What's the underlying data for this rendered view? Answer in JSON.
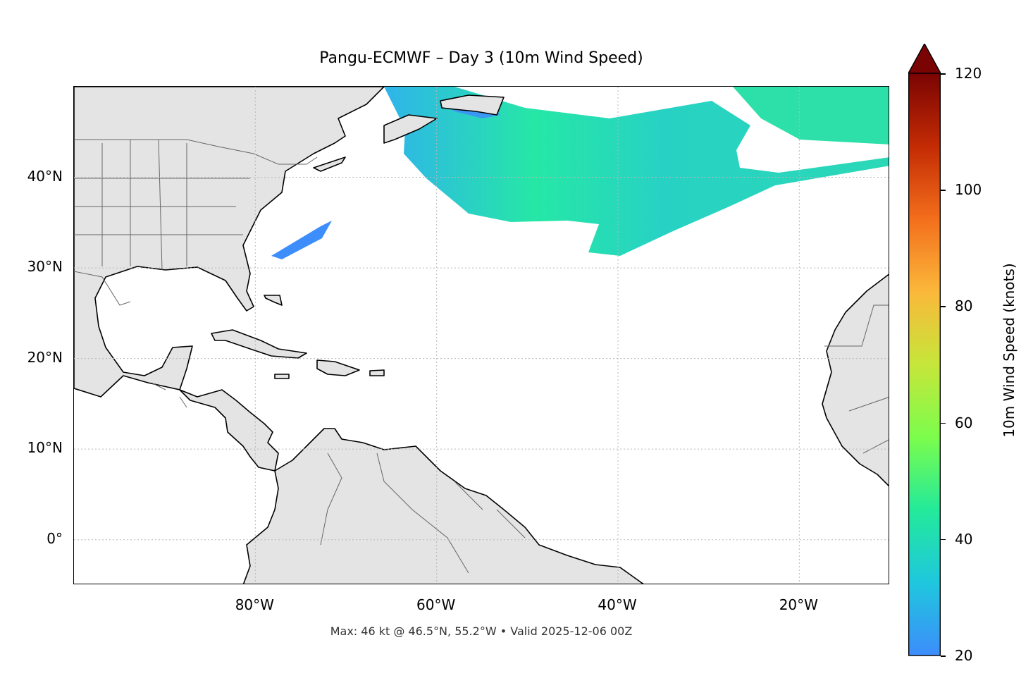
{
  "title": "Pangu-ECMWF – Day 3 (10m Wind Speed)",
  "footnote": "Max: 46 kt @ 46.5°N, 55.2°W • Valid 2025-12-06 00Z",
  "map": {
    "lon_range": [
      -100,
      -10
    ],
    "lat_range": [
      -5,
      50
    ],
    "lat_ticks": [
      {
        "value": 40,
        "label": "40°N"
      },
      {
        "value": 30,
        "label": "30°N"
      },
      {
        "value": 20,
        "label": "20°N"
      },
      {
        "value": 10,
        "label": "10°N"
      },
      {
        "value": 0,
        "label": "0°"
      }
    ],
    "lon_ticks": [
      {
        "value": -80,
        "label": "80°W"
      },
      {
        "value": -60,
        "label": "60°W"
      },
      {
        "value": -40,
        "label": "40°W"
      },
      {
        "value": -20,
        "label": "20°W"
      }
    ],
    "gridlines": true,
    "land_color": "#e4e4e4",
    "coastline_color": "#000000",
    "border_color": "#666666"
  },
  "colorbar": {
    "label": "10m Wind Speed (knots)",
    "min": 20,
    "max": 120,
    "extend": "max",
    "ticks": [
      {
        "value": 20,
        "label": "20"
      },
      {
        "value": 40,
        "label": "40"
      },
      {
        "value": 60,
        "label": "60"
      },
      {
        "value": 80,
        "label": "80"
      },
      {
        "value": 100,
        "label": "100"
      },
      {
        "value": 120,
        "label": "120"
      }
    ],
    "colormap": "turbo",
    "colors": [
      "#3d8dfb",
      "#1fc7de",
      "#23ea9a",
      "#7cfd4c",
      "#c6e63a",
      "#fbb83a",
      "#f36e1c",
      "#c32b04",
      "#7a0403"
    ]
  },
  "wind_max": {
    "value_kt": 46,
    "lat": 46.5,
    "lon": -55.2
  }
}
